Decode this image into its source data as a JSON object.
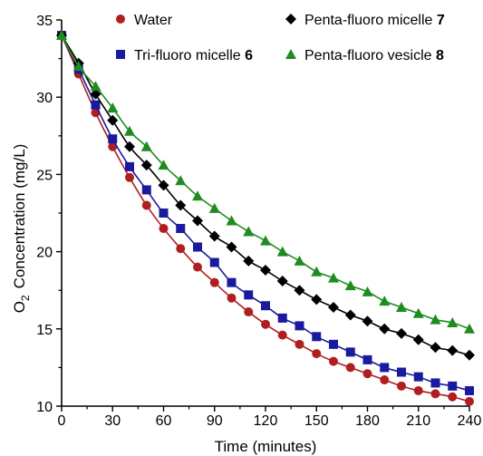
{
  "chart_data": {
    "type": "line",
    "xlabel": "Time (minutes)",
    "ylabel": "Concentration (mg/L)",
    "ylabel_species": "O",
    "ylabel_subscript": "2",
    "xlim": [
      0,
      240
    ],
    "ylim": [
      10,
      35
    ],
    "x_ticks": [
      0,
      30,
      60,
      90,
      120,
      150,
      180,
      210,
      240
    ],
    "y_ticks": [
      10,
      15,
      20,
      25,
      30,
      35
    ],
    "grid": false,
    "legend_placement": "top",
    "x": [
      0,
      10,
      20,
      30,
      40,
      50,
      60,
      70,
      80,
      90,
      100,
      110,
      120,
      130,
      140,
      150,
      160,
      170,
      180,
      190,
      200,
      210,
      220,
      230,
      240
    ],
    "series": [
      {
        "name": "Water",
        "legend_number": "",
        "color": "#b01f1f",
        "marker": "circle",
        "values": [
          34.0,
          31.5,
          29.0,
          26.8,
          24.8,
          23.0,
          21.5,
          20.2,
          19.0,
          18.0,
          17.0,
          16.1,
          15.3,
          14.6,
          14.0,
          13.4,
          12.9,
          12.5,
          12.1,
          11.7,
          11.3,
          11.0,
          10.8,
          10.6,
          10.3
        ]
      },
      {
        "name": "Tri-fluoro micelle",
        "legend_number": "6",
        "color": "#1a1a9e",
        "marker": "square",
        "values": [
          34.0,
          31.8,
          29.5,
          27.3,
          25.5,
          24.0,
          22.5,
          21.5,
          20.3,
          19.3,
          18.0,
          17.2,
          16.5,
          15.7,
          15.2,
          14.5,
          14.0,
          13.5,
          13.0,
          12.5,
          12.2,
          11.9,
          11.5,
          11.3,
          11.0
        ]
      },
      {
        "name": "Penta-fluoro micelle",
        "legend_number": "7",
        "color": "#000000",
        "marker": "diamond",
        "values": [
          34.0,
          32.2,
          30.2,
          28.5,
          26.8,
          25.6,
          24.3,
          23.0,
          22.0,
          21.0,
          20.3,
          19.4,
          18.8,
          18.1,
          17.5,
          16.9,
          16.4,
          15.9,
          15.5,
          15.0,
          14.7,
          14.3,
          13.8,
          13.6,
          13.3
        ]
      },
      {
        "name": "Penta-fluoro vesicle",
        "legend_number": "8",
        "color": "#1e8c1e",
        "marker": "triangle",
        "values": [
          34.0,
          32.0,
          30.7,
          29.3,
          27.8,
          26.8,
          25.6,
          24.6,
          23.6,
          22.8,
          22.0,
          21.3,
          20.7,
          20.0,
          19.4,
          18.7,
          18.3,
          17.8,
          17.4,
          16.8,
          16.4,
          16.0,
          15.6,
          15.4,
          15.0
        ]
      }
    ]
  }
}
